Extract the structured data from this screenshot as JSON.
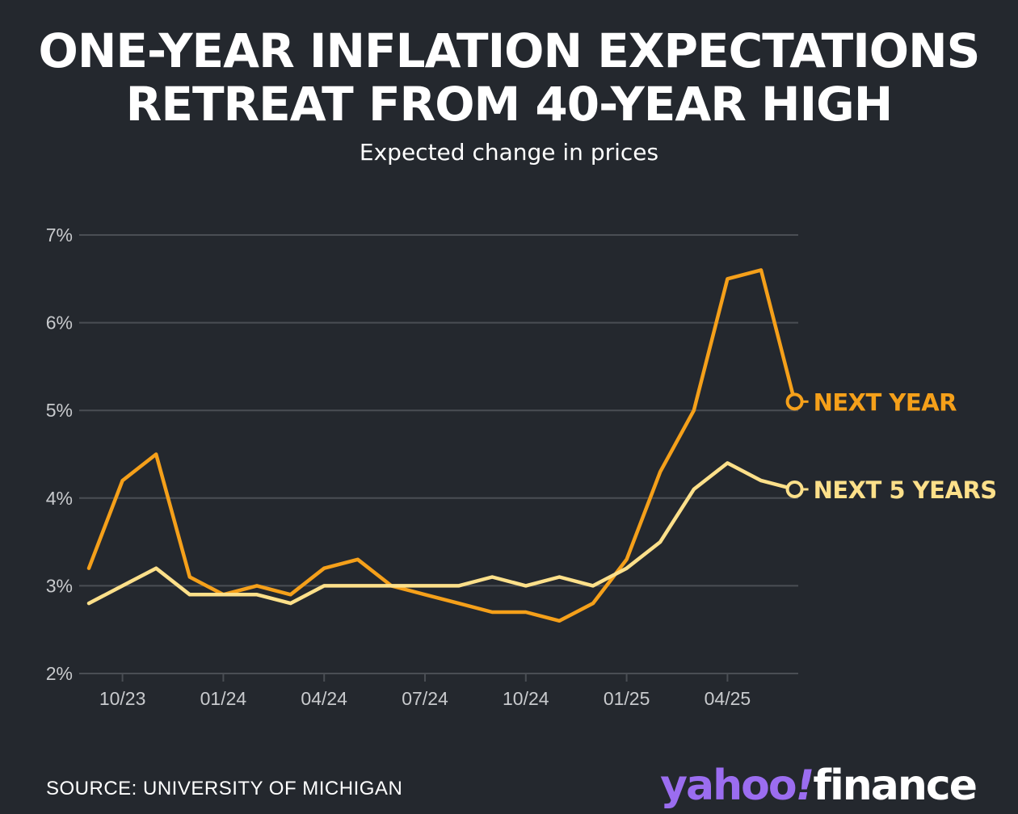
{
  "header": {
    "title_line1": "ONE-YEAR INFLATION EXPECTATIONS",
    "title_line2": "RETREAT FROM 40-YEAR HIGH",
    "subtitle": "Expected change in prices"
  },
  "footer": {
    "source": "SOURCE: UNIVERSITY OF MICHIGAN",
    "logo_yahoo": "yahoo",
    "logo_bang": "!",
    "logo_finance": "finance"
  },
  "colors": {
    "background": "#24282e",
    "next_year": "#f5a01a",
    "next_5_years": "#fde08a",
    "grid": "#4a4e54",
    "tick_text": "#c8cacd"
  },
  "chart_data": {
    "type": "line",
    "title": "ONE-YEAR INFLATION EXPECTATIONS RETREAT FROM 40-YEAR HIGH",
    "subtitle": "Expected change in prices",
    "xlabel": "",
    "ylabel": "",
    "ylim": [
      2,
      7
    ],
    "yticks": [
      2,
      3,
      4,
      5,
      6,
      7
    ],
    "ytick_labels": [
      "2%",
      "3%",
      "4%",
      "5%",
      "6%",
      "7%"
    ],
    "x": [
      "2023-09",
      "2023-10",
      "2023-11",
      "2023-12",
      "2024-01",
      "2024-02",
      "2024-03",
      "2024-04",
      "2024-05",
      "2024-06",
      "2024-07",
      "2024-08",
      "2024-09",
      "2024-10",
      "2024-11",
      "2024-12",
      "2025-01",
      "2025-02",
      "2025-03",
      "2025-04",
      "2025-05",
      "2025-06"
    ],
    "xtick_labels": [
      "10/23",
      "01/24",
      "04/24",
      "07/24",
      "10/24",
      "01/25",
      "04/25"
    ],
    "xtick_indices": [
      1,
      4,
      7,
      10,
      13,
      16,
      19
    ],
    "grid": true,
    "series": [
      {
        "name": "NEXT YEAR",
        "color": "#f5a01a",
        "values": [
          3.2,
          4.2,
          4.5,
          3.1,
          2.9,
          3.0,
          2.9,
          3.2,
          3.3,
          3.0,
          2.9,
          2.8,
          2.7,
          2.7,
          2.6,
          2.8,
          3.3,
          4.3,
          5.0,
          6.5,
          6.6,
          5.1
        ]
      },
      {
        "name": "NEXT 5 YEARS",
        "color": "#fde08a",
        "values": [
          2.8,
          3.0,
          3.2,
          2.9,
          2.9,
          2.9,
          2.8,
          3.0,
          3.0,
          3.0,
          3.0,
          3.0,
          3.1,
          3.0,
          3.1,
          3.0,
          3.2,
          3.5,
          4.1,
          4.4,
          4.2,
          4.1
        ]
      }
    ]
  }
}
